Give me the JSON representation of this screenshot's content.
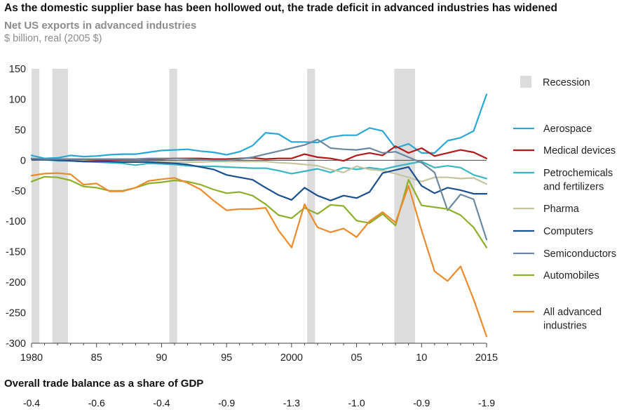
{
  "title": "As the domestic supplier base has been hollowed out, the trade deficit in advanced industries has widened",
  "subtitle": "Net US exports in advanced industries",
  "units": "$ billion, real (2005 $)",
  "gdp_title": "Overall trade balance as a share of GDP",
  "gdp_values": [
    {
      "year": 1980,
      "label": "-0.4"
    },
    {
      "year": 1985,
      "label": "-0.6"
    },
    {
      "year": 1990,
      "label": "-0.4"
    },
    {
      "year": 1995,
      "label": "-0.9"
    },
    {
      "year": 2000,
      "label": "-1.3"
    },
    {
      "year": 2005,
      "label": "-1.0"
    },
    {
      "year": 2010,
      "label": "-0.9"
    },
    {
      "year": 2015,
      "label": "-1.9"
    }
  ],
  "chart_data": {
    "type": "line",
    "title": "Net US exports in advanced industries",
    "ylabel": "$ billion, real (2005 $)",
    "xlim": [
      1980,
      2015
    ],
    "ylim": [
      -300,
      150
    ],
    "yticks": [
      150,
      100,
      50,
      0,
      -50,
      -100,
      -150,
      -200,
      -250,
      -300
    ],
    "xticks": [
      {
        "value": 1980,
        "label": "1980"
      },
      {
        "value": 1985,
        "label": "85"
      },
      {
        "value": 1990,
        "label": "90"
      },
      {
        "value": 1995,
        "label": "95"
      },
      {
        "value": 2000,
        "label": "2000"
      },
      {
        "value": 2005,
        "label": "05"
      },
      {
        "value": 2010,
        "label": "10"
      },
      {
        "value": 2015,
        "label": "2015"
      }
    ],
    "recession_label": "Recession",
    "recession_color": "#dcdcdc",
    "recessions": [
      [
        1980.0,
        1980.6
      ],
      [
        1981.6,
        1982.8
      ],
      [
        1990.6,
        1991.2
      ],
      [
        2001.2,
        2001.8
      ],
      [
        2007.9,
        2009.5
      ]
    ],
    "x": [
      1980,
      1981,
      1982,
      1983,
      1984,
      1985,
      1986,
      1987,
      1988,
      1989,
      1990,
      1991,
      1992,
      1993,
      1994,
      1995,
      1996,
      1997,
      1998,
      1999,
      2000,
      2001,
      2002,
      2003,
      2004,
      2005,
      2006,
      2007,
      2008,
      2009,
      2010,
      2011,
      2012,
      2013,
      2014,
      2015
    ],
    "series": [
      {
        "name": "Aerospace",
        "color": "#29a8d7",
        "values": [
          8,
          3,
          4,
          8,
          6,
          7,
          9,
          10,
          10,
          13,
          16,
          17,
          18,
          15,
          13,
          9,
          14,
          24,
          45,
          43,
          30,
          30,
          29,
          38,
          41,
          41,
          53,
          48,
          20,
          27,
          12,
          12,
          32,
          37,
          48,
          108
        ]
      },
      {
        "name": "Medical devices",
        "color": "#b21a1a",
        "values": [
          2,
          2,
          1,
          1,
          1,
          1,
          1,
          1,
          2,
          2,
          2,
          3,
          3,
          3,
          2,
          2,
          3,
          4,
          2,
          3,
          3,
          10,
          5,
          3,
          -1,
          8,
          12,
          8,
          23,
          12,
          20,
          7,
          12,
          17,
          13,
          3
        ]
      },
      {
        "name": "Petrochemicals and fertilizers",
        "color": "#3ab5c2",
        "values": [
          3,
          1,
          -1,
          -1,
          -2,
          -3,
          -4,
          -5,
          -8,
          -5,
          -6,
          -7,
          -9,
          -10,
          -10,
          -11,
          -12,
          -13,
          -13,
          -17,
          -22,
          -18,
          -14,
          -20,
          -12,
          -15,
          -12,
          -15,
          -10,
          -6,
          -2,
          -12,
          -9,
          -12,
          -24,
          -30
        ]
      },
      {
        "name": "Pharma",
        "color": "#c5c4a0",
        "values": [
          2,
          1,
          0,
          -1,
          -1,
          -2,
          -2,
          -2,
          -2,
          -2,
          -2,
          -3,
          -3,
          -3,
          -2,
          -2,
          -2,
          -2,
          -2,
          -4,
          -5,
          -7,
          -9,
          -15,
          -20,
          -10,
          -15,
          -17,
          -22,
          -28,
          -35,
          -28,
          -28,
          -30,
          -29,
          -39
        ]
      },
      {
        "name": "Computers",
        "color": "#1b4f8e",
        "values": [
          2,
          1,
          0,
          -1,
          -2,
          -2,
          -2,
          -3,
          -3,
          -3,
          -4,
          -5,
          -7,
          -11,
          -15,
          -24,
          -28,
          -32,
          -45,
          -57,
          -65,
          -45,
          -58,
          -66,
          -58,
          -62,
          -52,
          -21,
          -16,
          -11,
          -42,
          -54,
          -45,
          -49,
          -55,
          -55
        ]
      },
      {
        "name": "Semiconductors",
        "color": "#6b88a0",
        "values": [
          3,
          2,
          2,
          2,
          2,
          2,
          2,
          2,
          2,
          3,
          3,
          3,
          2,
          1,
          0,
          0,
          2,
          5,
          10,
          15,
          20,
          25,
          34,
          20,
          18,
          17,
          20,
          12,
          14,
          5,
          -4,
          -20,
          -82,
          -56,
          -64,
          -130
        ]
      },
      {
        "name": "Automobiles",
        "color": "#8daf2a",
        "values": [
          -35,
          -27,
          -28,
          -33,
          -43,
          -45,
          -50,
          -50,
          -45,
          -38,
          -36,
          -33,
          -35,
          -40,
          -48,
          -54,
          -52,
          -58,
          -72,
          -90,
          -95,
          -78,
          -88,
          -73,
          -75,
          -99,
          -103,
          -88,
          -107,
          -32,
          -74,
          -77,
          -80,
          -90,
          -110,
          -143
        ]
      },
      {
        "name": "All advanced industries",
        "color": "#ec8a2c",
        "values": [
          -25,
          -22,
          -21,
          -23,
          -40,
          -38,
          -51,
          -51,
          -45,
          -34,
          -31,
          -29,
          -37,
          -48,
          -66,
          -82,
          -80,
          -80,
          -78,
          -115,
          -143,
          -72,
          -110,
          -118,
          -112,
          -126,
          -100,
          -85,
          -102,
          -42,
          -115,
          -182,
          -198,
          -174,
          -228,
          -289
        ]
      }
    ]
  }
}
